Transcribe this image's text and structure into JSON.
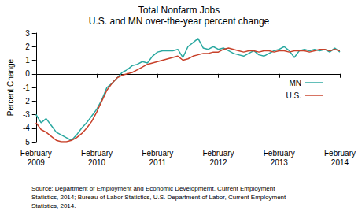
{
  "chart_data": {
    "type": "line",
    "title": "Total Nonfarm Jobs",
    "subtitle": "U.S. and MN over-the-year percent change",
    "y_label": "Percent Change",
    "source": "Source: Department of Employment and Economic Developmemt, Current Employment\nStatistics, 2014; Bureau of Labor Statistics, U.S. Department of Labor, Current Employment\nStatistics, 2014.",
    "categories": [
      "February\n2009",
      null,
      null,
      null,
      null,
      null,
      null,
      null,
      null,
      null,
      null,
      null,
      "February\n2010",
      null,
      null,
      null,
      null,
      null,
      null,
      null,
      null,
      null,
      null,
      null,
      "February\n2011",
      null,
      null,
      null,
      null,
      null,
      null,
      null,
      null,
      null,
      null,
      null,
      "February\n2012",
      null,
      null,
      null,
      null,
      null,
      null,
      null,
      null,
      null,
      null,
      null,
      "February\n2013",
      null,
      null,
      null,
      null,
      null,
      null,
      null,
      null,
      null,
      null,
      null,
      "February\n2014"
    ],
    "series": [
      {
        "name": "MN",
        "color": "#2aa8a0",
        "values": [
          -3.0,
          -3.6,
          -3.3,
          -3.8,
          -4.3,
          -4.5,
          -4.7,
          -4.9,
          -4.5,
          -4.0,
          -3.6,
          -3.1,
          -2.6,
          -1.9,
          -1.0,
          -0.7,
          -0.3,
          0.1,
          0.3,
          0.6,
          0.7,
          0.9,
          0.8,
          1.3,
          1.6,
          1.7,
          1.7,
          1.7,
          1.8,
          1.2,
          2.0,
          2.3,
          2.6,
          1.9,
          1.8,
          2.0,
          1.8,
          1.9,
          1.7,
          1.5,
          1.4,
          1.3,
          1.5,
          1.7,
          1.4,
          1.3,
          1.5,
          1.7,
          1.8,
          2.0,
          1.7,
          1.2,
          1.7,
          1.8,
          1.7,
          1.8,
          1.7,
          1.8,
          1.6,
          1.9,
          1.6
        ]
      },
      {
        "name": "U.S.",
        "color": "#c8412a",
        "values": [
          -3.6,
          -4.1,
          -4.3,
          -4.6,
          -4.9,
          -5.0,
          -5.0,
          -4.9,
          -4.7,
          -4.4,
          -4.0,
          -3.5,
          -2.8,
          -2.0,
          -1.2,
          -0.7,
          -0.3,
          -0.1,
          0.0,
          0.1,
          0.3,
          0.5,
          0.7,
          0.8,
          0.9,
          1.0,
          1.1,
          1.2,
          1.3,
          1.0,
          1.1,
          1.3,
          1.4,
          1.5,
          1.5,
          1.6,
          1.6,
          1.8,
          1.9,
          1.8,
          1.7,
          1.6,
          1.7,
          1.7,
          1.6,
          1.7,
          1.7,
          1.6,
          1.7,
          1.7,
          1.6,
          1.7,
          1.7,
          1.7,
          1.6,
          1.7,
          1.8,
          1.8,
          1.7,
          1.8,
          1.7
        ]
      }
    ],
    "ylim": [
      -5,
      3
    ],
    "yticks": [
      -5,
      -4,
      -3,
      -2,
      -1,
      0,
      1,
      2,
      3
    ],
    "grid": false,
    "legend": "right"
  }
}
